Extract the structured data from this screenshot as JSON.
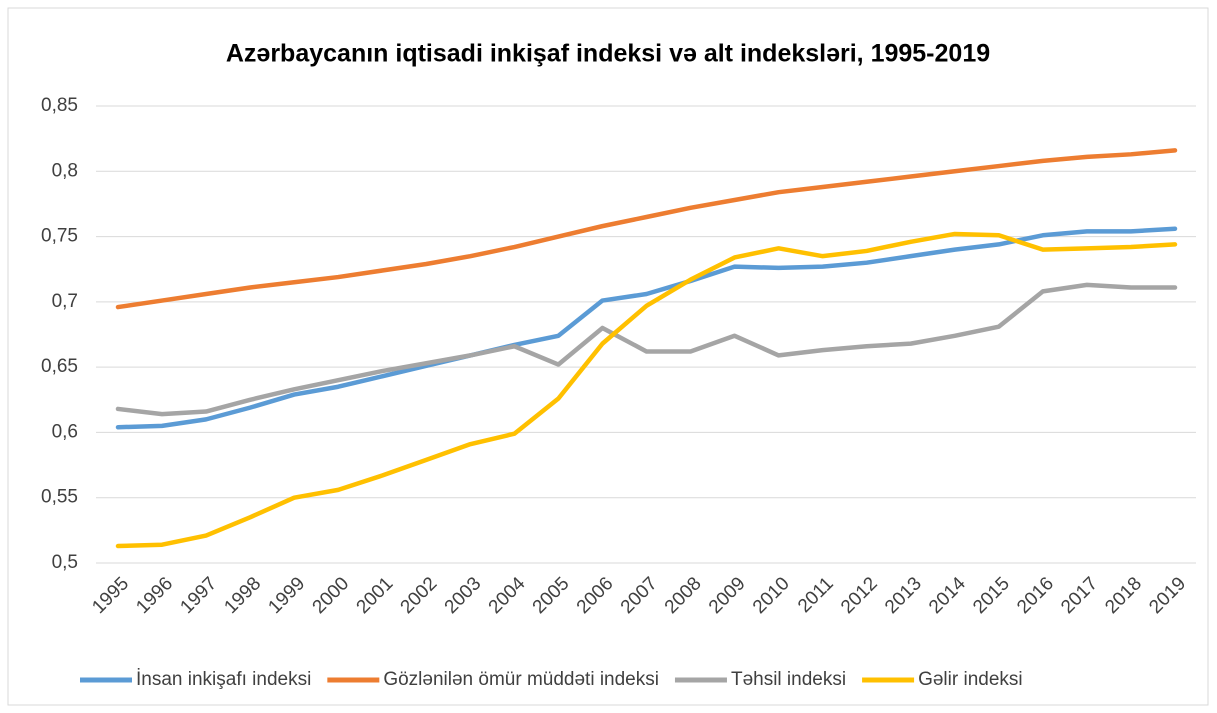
{
  "chart_data": {
    "type": "line",
    "title": "Azərbaycanın iqtisadi inkişaf indeksi və alt indeksləri, 1995-2019",
    "categories": [
      "1995",
      "1996",
      "1997",
      "1998",
      "1999",
      "2000",
      "2001",
      "2002",
      "2003",
      "2004",
      "2005",
      "2006",
      "2007",
      "2008",
      "2009",
      "2010",
      "2011",
      "2012",
      "2013",
      "2014",
      "2015",
      "2016",
      "2017",
      "2018",
      "2019"
    ],
    "series": [
      {
        "name": "İnsan inkişafı indeksi",
        "color": "#5b9bd5",
        "values": [
          0.604,
          0.605,
          0.61,
          0.619,
          0.629,
          0.635,
          0.643,
          0.651,
          0.659,
          0.667,
          0.674,
          0.701,
          0.706,
          0.716,
          0.727,
          0.726,
          0.727,
          0.73,
          0.735,
          0.74,
          0.744,
          0.751,
          0.754,
          0.754,
          0.756
        ]
      },
      {
        "name": "Gözlənilən ömür müddəti indeksi",
        "color": "#ed7d31",
        "values": [
          0.696,
          0.701,
          0.706,
          0.711,
          0.715,
          0.719,
          0.724,
          0.729,
          0.735,
          0.742,
          0.75,
          0.758,
          0.765,
          0.772,
          0.778,
          0.784,
          0.788,
          0.792,
          0.796,
          0.8,
          0.804,
          0.808,
          0.811,
          0.813,
          0.816
        ]
      },
      {
        "name": "Təhsil indeksi",
        "color": "#a5a5a5",
        "values": [
          0.618,
          0.614,
          0.616,
          0.625,
          0.633,
          0.64,
          0.647,
          0.653,
          0.659,
          0.666,
          0.652,
          0.68,
          0.662,
          0.662,
          0.674,
          0.659,
          0.663,
          0.666,
          0.668,
          0.674,
          0.681,
          0.708,
          0.713,
          0.711,
          0.711
        ]
      },
      {
        "name": "Gəlir indeksi",
        "color": "#ffc000",
        "values": [
          0.513,
          0.514,
          0.521,
          0.535,
          0.55,
          0.556,
          0.567,
          0.579,
          0.591,
          0.599,
          0.626,
          0.668,
          0.697,
          0.717,
          0.734,
          0.741,
          0.735,
          0.739,
          0.746,
          0.752,
          0.751,
          0.74,
          0.741,
          0.742,
          0.744
        ]
      }
    ],
    "ylim": [
      0.5,
      0.85
    ],
    "yticks": [
      {
        "value": 0.5,
        "label": "0,5"
      },
      {
        "value": 0.55,
        "label": "0,55"
      },
      {
        "value": 0.6,
        "label": "0,6"
      },
      {
        "value": 0.65,
        "label": "0,65"
      },
      {
        "value": 0.7,
        "label": "0,7"
      },
      {
        "value": 0.75,
        "label": "0,75"
      },
      {
        "value": 0.8,
        "label": "0,8"
      },
      {
        "value": 0.85,
        "label": "0,85"
      }
    ],
    "grid": true,
    "legend": "bottom"
  }
}
